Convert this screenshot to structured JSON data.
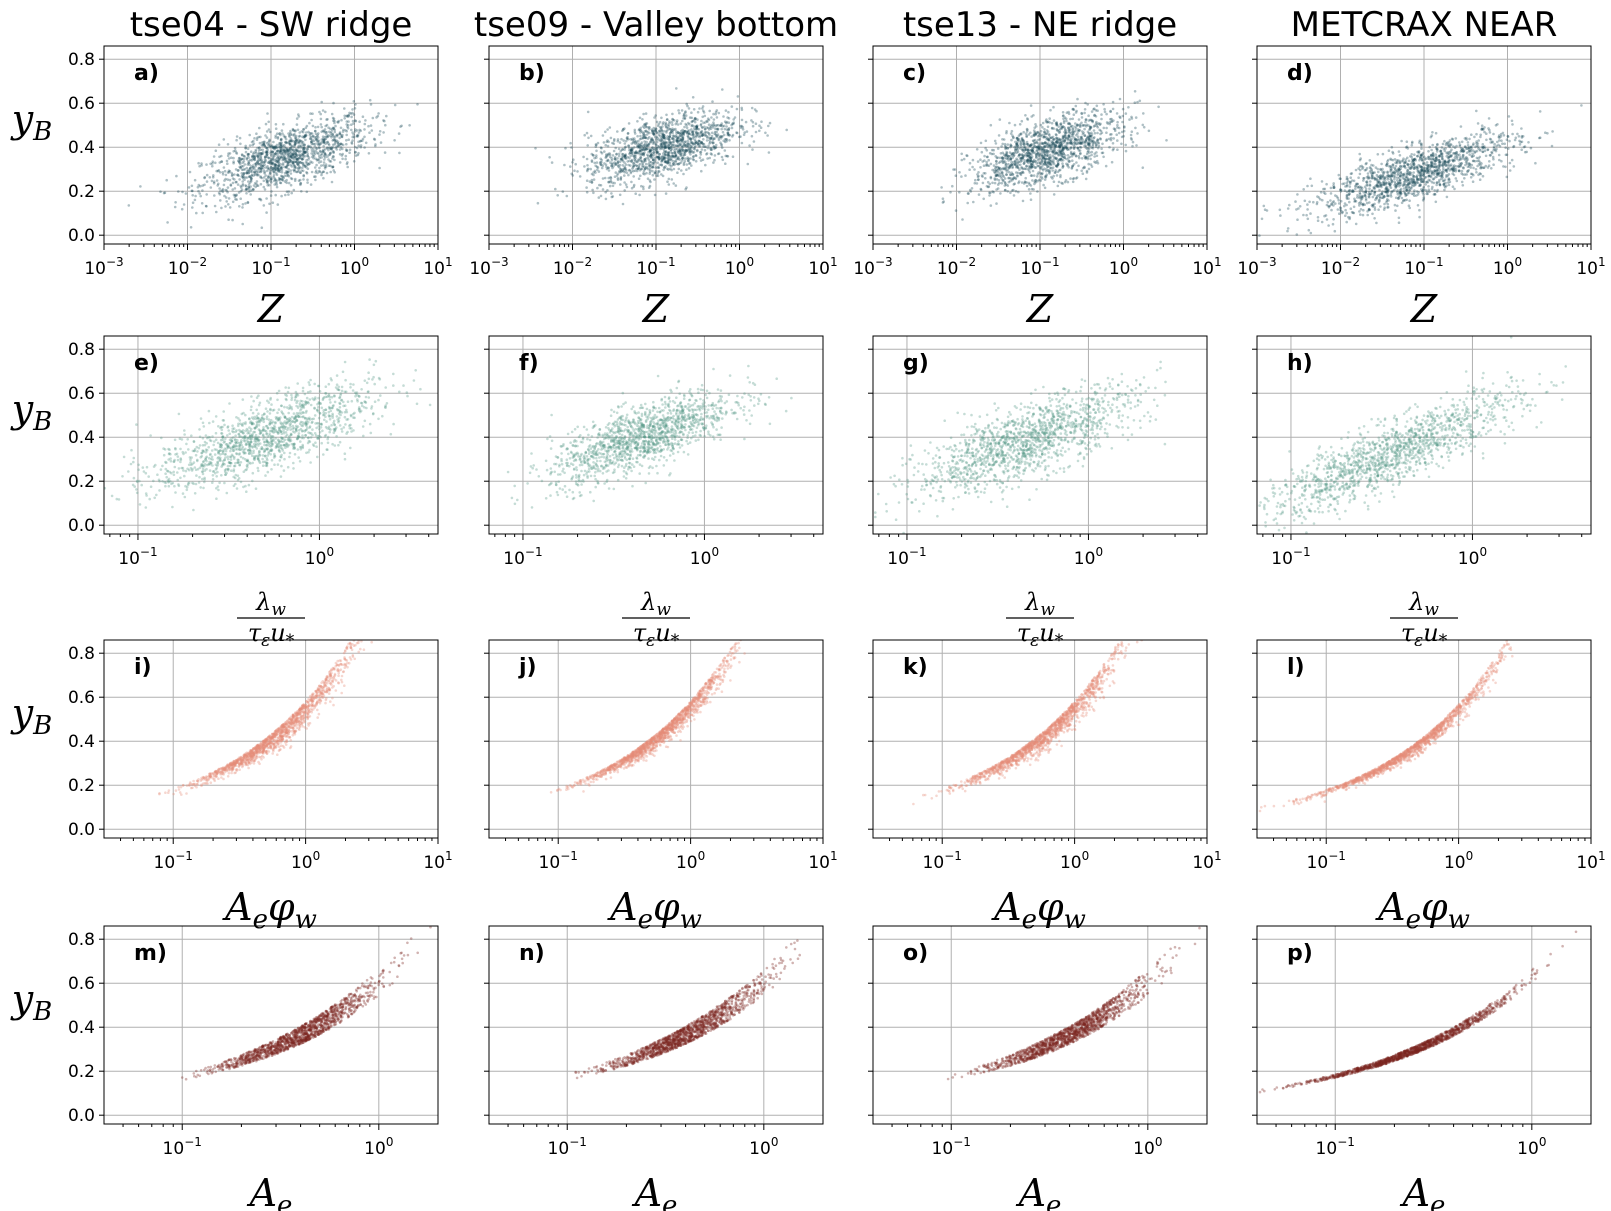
{
  "colors": {
    "row1": "#1b4b5a",
    "row2": "#5a9a89",
    "row3": "#e58c77",
    "row4": "#7a2620"
  },
  "chart_data": {
    "type": "scatter",
    "column_titles": [
      "tse04 - SW ridge",
      "tse09 - Valley bottom",
      "tse13 - NE ridge",
      "METCRAX NEAR"
    ],
    "ylabel": "y_B",
    "ylabel_main": "y",
    "ylabel_sub": "B",
    "ylim": [
      -0.04,
      0.86
    ],
    "yticks": [
      0.0,
      0.2,
      0.4,
      0.6,
      0.8
    ],
    "ytick_labels": [
      "0.0",
      "0.2",
      "0.4",
      "0.6",
      "0.8"
    ],
    "rows": [
      {
        "xlabel": "Z",
        "xscale": "log",
        "xlim": [
          0.001,
          10
        ],
        "xtick_exponents": [
          -3,
          -2,
          -1,
          0,
          1
        ],
        "color_key": "row1",
        "panels": [
          {
            "label": "a)",
            "x_center": 0.15,
            "spread": 0.5,
            "y0": 0.35,
            "slope": 0.12,
            "ynoise": 0.07
          },
          {
            "label": "b)",
            "x_center": 0.12,
            "spread": 0.45,
            "y0": 0.4,
            "slope": 0.1,
            "ynoise": 0.07
          },
          {
            "label": "c)",
            "x_center": 0.12,
            "spread": 0.45,
            "y0": 0.38,
            "slope": 0.12,
            "ynoise": 0.07
          },
          {
            "label": "d)",
            "x_center": 0.08,
            "spread": 0.6,
            "y0": 0.28,
            "slope": 0.12,
            "ynoise": 0.06
          }
        ]
      },
      {
        "xlabel": "λw / (τε u*)",
        "xlabel_num": "λ",
        "xlabel_num_sub": "w",
        "xlabel_den": "τ",
        "xlabel_den_sub1": "ε",
        "xlabel_den_mid": "u",
        "xlabel_den_sub2": "*",
        "xscale": "log",
        "xlim": [
          0.065,
          4.5
        ],
        "xtick_exponents": [
          -1,
          0
        ],
        "color_key": "row2",
        "panels": [
          {
            "label": "e)",
            "x_center": 0.5,
            "spread": 0.3,
            "y0": 0.4,
            "slope": 0.28,
            "ynoise": 0.08
          },
          {
            "label": "f)",
            "x_center": 0.45,
            "spread": 0.25,
            "y0": 0.4,
            "slope": 0.3,
            "ynoise": 0.07
          },
          {
            "label": "g)",
            "x_center": 0.45,
            "spread": 0.3,
            "y0": 0.38,
            "slope": 0.3,
            "ynoise": 0.08
          },
          {
            "label": "h)",
            "x_center": 0.35,
            "spread": 0.35,
            "y0": 0.32,
            "slope": 0.35,
            "ynoise": 0.07
          }
        ]
      },
      {
        "xlabel": "Aeφw",
        "xlabel_main1": "A",
        "xlabel_sub1": "e",
        "xlabel_main2": "φ",
        "xlabel_sub2": "w",
        "xscale": "log",
        "xlim": [
          0.03,
          10
        ],
        "xtick_exponents": [
          -1,
          0,
          1
        ],
        "color_key": "row3",
        "panels": [
          {
            "label": "i)",
            "x_center": 0.6,
            "spread": 0.3,
            "y0": 0.45,
            "slope": 0.35,
            "ynoise": 0.05
          },
          {
            "label": "j)",
            "x_center": 0.6,
            "spread": 0.28,
            "y0": 0.45,
            "slope": 0.4,
            "ynoise": 0.04
          },
          {
            "label": "k)",
            "x_center": 0.6,
            "spread": 0.3,
            "y0": 0.45,
            "slope": 0.38,
            "ynoise": 0.05
          },
          {
            "label": "l)",
            "x_center": 0.45,
            "spread": 0.38,
            "y0": 0.38,
            "slope": 0.35,
            "ynoise": 0.03
          }
        ]
      },
      {
        "xlabel": "Ae",
        "xlabel_main1": "A",
        "xlabel_sub1": "e",
        "xscale": "log",
        "xlim": [
          0.04,
          2
        ],
        "xtick_exponents": [
          -1,
          0
        ],
        "color_key": "row4",
        "panels": [
          {
            "label": "m)",
            "x_center": 0.4,
            "spread": 0.2,
            "y0": 0.38,
            "slope": 0.55,
            "ynoise": 0.05
          },
          {
            "label": "n)",
            "x_center": 0.4,
            "spread": 0.2,
            "y0": 0.38,
            "slope": 0.55,
            "ynoise": 0.05
          },
          {
            "label": "o)",
            "x_center": 0.4,
            "spread": 0.2,
            "y0": 0.38,
            "slope": 0.55,
            "ynoise": 0.05
          },
          {
            "label": "p)",
            "x_center": 0.25,
            "spread": 0.25,
            "y0": 0.3,
            "slope": 0.55,
            "ynoise": 0.02
          }
        ]
      }
    ]
  }
}
